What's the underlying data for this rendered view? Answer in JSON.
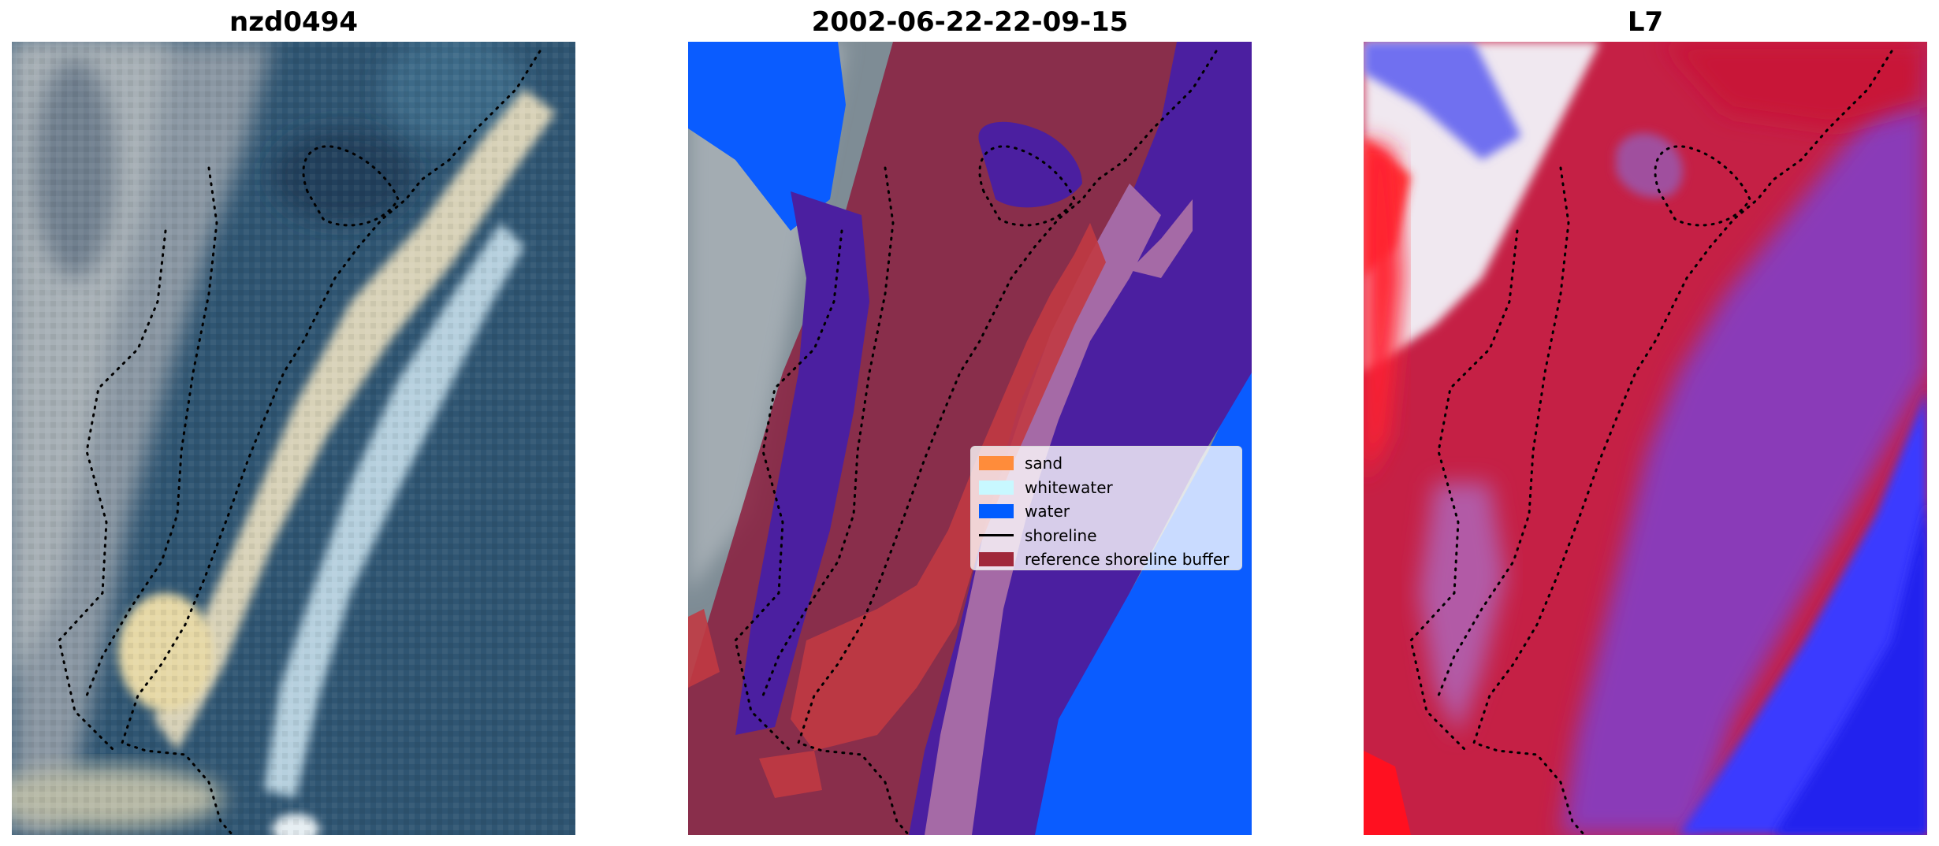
{
  "panels": [
    {
      "title": "nzd0494"
    },
    {
      "title": "2002-06-22-22-09-15"
    },
    {
      "title": "L7"
    }
  ],
  "legend": {
    "items": [
      {
        "label": "sand",
        "color": "#ff8c3a",
        "kind": "patch"
      },
      {
        "label": "whitewater",
        "color": "#c8f8ff",
        "kind": "patch"
      },
      {
        "label": "water",
        "color": "#005cff",
        "kind": "patch"
      },
      {
        "label": "shoreline",
        "color": "#000000",
        "kind": "line"
      },
      {
        "label": "reference shoreline buffer",
        "color": "#a0283a",
        "kind": "patch"
      }
    ]
  },
  "colors": {
    "water_class": "#0a5cff",
    "buffer_overlay": "#8b1a3a",
    "water_overlay": "#4b1fa0",
    "index_positive": "#e0102a",
    "index_negative": "#2a2aff"
  }
}
